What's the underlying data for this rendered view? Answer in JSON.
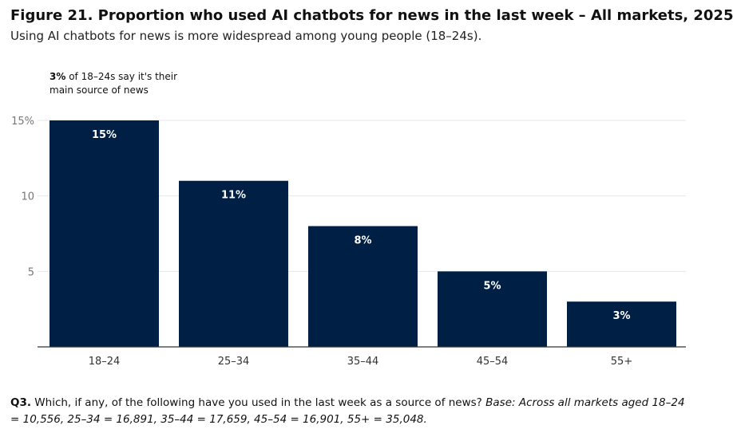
{
  "title": "Figure 21. Proportion who used AI chatbots for news in the last week – All markets, 2025",
  "subtitle": "Using AI chatbots for news is more widespread among young people (18–24s).",
  "annotation": {
    "bold": "3%",
    "rest_line1": " of 18–24s say it's their",
    "line2": "main source of news"
  },
  "footnote": {
    "q_label": "Q3.",
    "question": " Which, if any, of the following have you used in the last week as a source of news? ",
    "base": "Base: Across all markets aged 18–24 = 10,556, 25–34 = 16,891, 35–44 = 17,659, 45–54 = 16,901, 55+ = 35,048."
  },
  "colors": {
    "bar": "#001f45",
    "grid": "#e6e6e6",
    "axis": "#333333"
  },
  "chart_data": {
    "type": "bar",
    "categories": [
      "18–24",
      "25–34",
      "35–44",
      "45–54",
      "55+"
    ],
    "values": [
      15,
      11,
      8,
      5,
      3
    ],
    "data_labels": [
      "15%",
      "11%",
      "8%",
      "5%",
      "3%"
    ],
    "ylim": [
      0,
      15
    ],
    "yticks": [
      5,
      10,
      15
    ],
    "ytick_labels": [
      "5",
      "10",
      "15%"
    ],
    "grid": true,
    "xlabel": "",
    "ylabel": ""
  }
}
